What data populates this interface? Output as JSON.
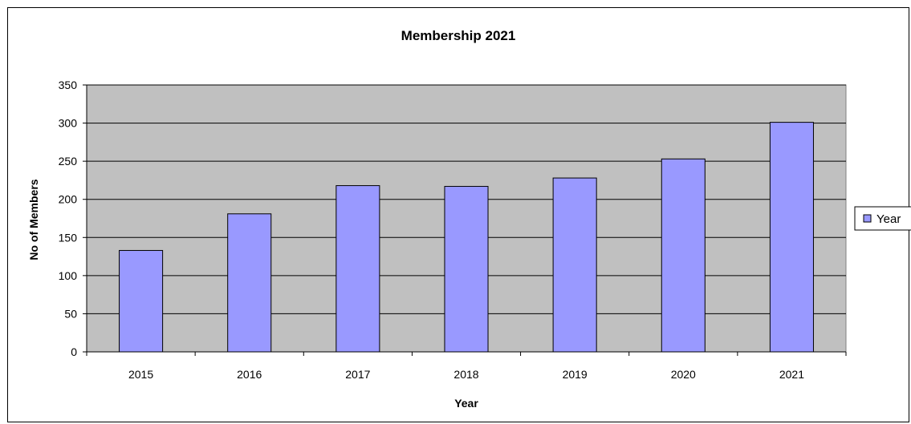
{
  "chart_data": {
    "type": "bar",
    "title": "Membership 2021",
    "xlabel": "Year",
    "ylabel": "No of Members",
    "categories": [
      "2015",
      "2016",
      "2017",
      "2018",
      "2019",
      "2020",
      "2021"
    ],
    "series": [
      {
        "name": "Year",
        "values": [
          133,
          181,
          218,
          217,
          228,
          253,
          301
        ]
      }
    ],
    "ylim": [
      0,
      350
    ],
    "yticks": [
      0,
      50,
      100,
      150,
      200,
      250,
      300,
      350
    ],
    "grid": true,
    "legend_position": "right",
    "colors": {
      "plot_background": "#c0c0c0",
      "bar_fill": "#9999ff",
      "bar_stroke": "#000000",
      "gridline": "#000000"
    }
  }
}
